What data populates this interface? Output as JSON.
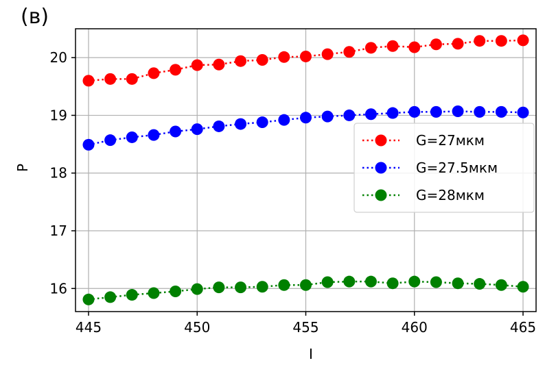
{
  "chart_data": {
    "type": "line",
    "panel_label": "(в)",
    "xlabel": "I",
    "ylabel": "P",
    "xlim": [
      444.4,
      465.6
    ],
    "ylim": [
      15.6,
      20.5
    ],
    "xticks": [
      445,
      450,
      455,
      460,
      465
    ],
    "yticks": [
      16,
      17,
      18,
      19,
      20
    ],
    "grid": true,
    "legend_position": "center-right",
    "x": [
      445,
      446,
      447,
      448,
      449,
      450,
      451,
      452,
      453,
      454,
      455,
      456,
      457,
      458,
      459,
      460,
      461,
      462,
      463,
      464,
      465
    ],
    "series": [
      {
        "name": "G=27мкм",
        "color": "#ff0000",
        "values": [
          19.6,
          19.63,
          19.63,
          19.73,
          19.79,
          19.87,
          19.88,
          19.94,
          19.96,
          20.01,
          20.02,
          20.06,
          20.1,
          20.17,
          20.2,
          20.18,
          20.23,
          20.24,
          20.29,
          20.29,
          20.3
        ]
      },
      {
        "name": "G=27.5мкм",
        "color": "#0000ff",
        "values": [
          18.49,
          18.57,
          18.62,
          18.66,
          18.72,
          18.76,
          18.81,
          18.85,
          18.88,
          18.92,
          18.96,
          18.98,
          19.0,
          19.02,
          19.04,
          19.06,
          19.06,
          19.07,
          19.06,
          19.06,
          19.05
        ]
      },
      {
        "name": "G=28мкм",
        "color": "#008000",
        "values": [
          15.81,
          15.85,
          15.89,
          15.92,
          15.95,
          15.99,
          16.02,
          16.02,
          16.03,
          16.06,
          16.06,
          16.11,
          16.12,
          16.12,
          16.09,
          16.12,
          16.11,
          16.09,
          16.08,
          16.06,
          16.03
        ]
      }
    ]
  }
}
